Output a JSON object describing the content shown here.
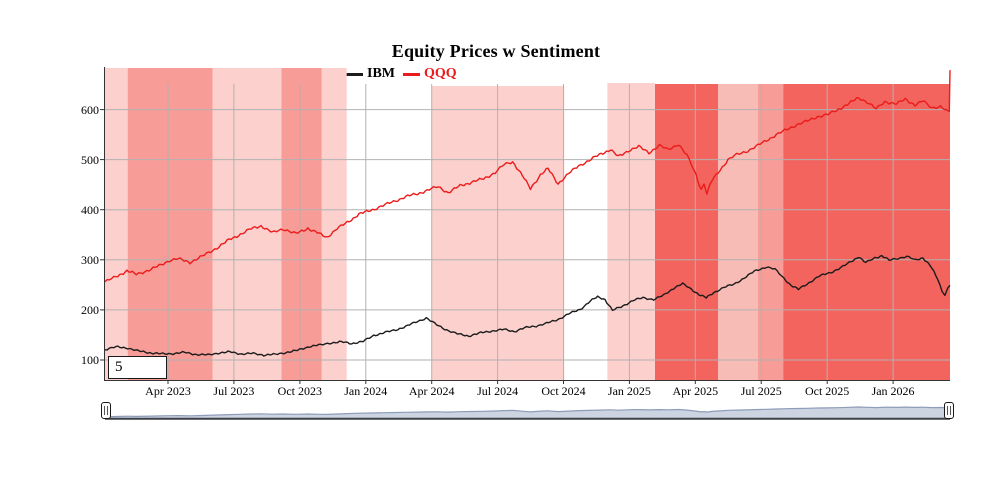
{
  "controls": {
    "window_value": "5"
  },
  "navigator": {
    "area_fill": "#ccd4e1",
    "area_line": "#8e9cba",
    "baseline_color": "#3c4148"
  },
  "chart_data": {
    "type": "line",
    "title": "Equity Prices w Sentiment",
    "xlabel": "",
    "ylabel": "",
    "grid": true,
    "legend_position": "top-center",
    "x_ticks": [
      "Apr 2023",
      "Jul 2023",
      "Oct 2023",
      "Jan 2024",
      "Apr 2024",
      "Jul 2024",
      "Oct 2024",
      "Jan 2025",
      "Apr 2025",
      "Jul 2025",
      "Oct 2025",
      "Jan 2026"
    ],
    "y_ticks": [
      100,
      200,
      300,
      400,
      500,
      600
    ],
    "ylim": [
      60,
      685
    ],
    "x_range": [
      "2023-01-05",
      "2026-03-19"
    ],
    "band_colors": {
      "light": "#fbd0cd",
      "midlight": "#f8bcb6",
      "medium": "#f79c96",
      "dark": "#f2645d"
    },
    "sentiment_bands": [
      {
        "from": "2023-01-05",
        "to": "2023-02-06",
        "intensity": "light",
        "top": 68
      },
      {
        "from": "2023-02-06",
        "to": "2023-06-02",
        "intensity": "medium",
        "top": 68
      },
      {
        "from": "2023-06-02",
        "to": "2023-09-06",
        "intensity": "light",
        "top": 68
      },
      {
        "from": "2023-09-06",
        "to": "2023-11-01",
        "intensity": "medium",
        "top": 68
      },
      {
        "from": "2023-11-01",
        "to": "2023-12-05",
        "intensity": "light",
        "top": 68
      },
      {
        "from": "2024-04-01",
        "to": "2024-10-02",
        "intensity": "light",
        "top": 86
      },
      {
        "from": "2024-12-01",
        "to": "2025-02-06",
        "intensity": "light",
        "top": 83
      },
      {
        "from": "2025-02-06",
        "to": "2025-05-02",
        "intensity": "dark",
        "top": 84
      },
      {
        "from": "2025-05-02",
        "to": "2025-06-27",
        "intensity": "midlight",
        "top": 84
      },
      {
        "from": "2025-06-27",
        "to": "2025-08-01",
        "intensity": "medium",
        "top": 84
      },
      {
        "from": "2025-08-01",
        "to": "2026-03-19",
        "intensity": "dark",
        "top": 84
      }
    ],
    "series": [
      {
        "name": "IBM",
        "color": "#1c1c1c",
        "noise": 2.2,
        "points": [
          [
            "2023-01-05",
            121
          ],
          [
            "2023-01-20",
            126
          ],
          [
            "2023-02-06",
            124
          ],
          [
            "2023-02-20",
            118
          ],
          [
            "2023-03-08",
            114
          ],
          [
            "2023-03-24",
            112
          ],
          [
            "2023-04-08",
            113
          ],
          [
            "2023-04-24",
            115
          ],
          [
            "2023-05-10",
            111
          ],
          [
            "2023-05-26",
            110
          ],
          [
            "2023-06-10",
            114
          ],
          [
            "2023-06-26",
            116
          ],
          [
            "2023-07-12",
            112
          ],
          [
            "2023-07-28",
            113
          ],
          [
            "2023-08-12",
            110
          ],
          [
            "2023-08-28",
            111
          ],
          [
            "2023-09-12",
            115
          ],
          [
            "2023-09-28",
            119
          ],
          [
            "2023-10-14",
            127
          ],
          [
            "2023-10-30",
            130
          ],
          [
            "2023-11-12",
            134
          ],
          [
            "2023-11-28",
            136
          ],
          [
            "2023-12-12",
            133
          ],
          [
            "2023-12-28",
            137
          ],
          [
            "2024-01-12",
            149
          ],
          [
            "2024-01-28",
            155
          ],
          [
            "2024-02-12",
            160
          ],
          [
            "2024-02-26",
            167
          ],
          [
            "2024-03-12",
            177
          ],
          [
            "2024-03-24",
            184
          ],
          [
            "2024-04-08",
            170
          ],
          [
            "2024-04-22",
            160
          ],
          [
            "2024-05-06",
            152
          ],
          [
            "2024-05-22",
            148
          ],
          [
            "2024-06-08",
            154
          ],
          [
            "2024-06-24",
            158
          ],
          [
            "2024-07-10",
            161
          ],
          [
            "2024-07-24",
            157
          ],
          [
            "2024-08-08",
            164
          ],
          [
            "2024-08-24",
            168
          ],
          [
            "2024-09-08",
            173
          ],
          [
            "2024-09-24",
            181
          ],
          [
            "2024-10-08",
            192
          ],
          [
            "2024-10-24",
            201
          ],
          [
            "2024-11-08",
            218
          ],
          [
            "2024-11-18",
            226
          ],
          [
            "2024-11-28",
            221
          ],
          [
            "2024-12-08",
            199
          ],
          [
            "2024-12-20",
            206
          ],
          [
            "2025-01-06",
            219
          ],
          [
            "2025-01-20",
            224
          ],
          [
            "2025-02-04",
            221
          ],
          [
            "2025-02-18",
            229
          ],
          [
            "2025-03-04",
            246
          ],
          [
            "2025-03-14",
            252
          ],
          [
            "2025-03-26",
            241
          ],
          [
            "2025-04-06",
            231
          ],
          [
            "2025-04-16",
            224
          ],
          [
            "2025-04-26",
            234
          ],
          [
            "2025-05-10",
            245
          ],
          [
            "2025-05-24",
            251
          ],
          [
            "2025-06-08",
            264
          ],
          [
            "2025-06-22",
            277
          ],
          [
            "2025-07-08",
            286
          ],
          [
            "2025-07-20",
            281
          ],
          [
            "2025-08-02",
            263
          ],
          [
            "2025-08-12",
            249
          ],
          [
            "2025-08-22",
            241
          ],
          [
            "2025-09-06",
            254
          ],
          [
            "2025-09-20",
            267
          ],
          [
            "2025-10-06",
            275
          ],
          [
            "2025-10-20",
            284
          ],
          [
            "2025-11-04",
            297
          ],
          [
            "2025-11-14",
            306
          ],
          [
            "2025-11-24",
            294
          ],
          [
            "2025-12-06",
            304
          ],
          [
            "2025-12-16",
            308
          ],
          [
            "2025-12-26",
            299
          ],
          [
            "2026-01-08",
            303
          ],
          [
            "2026-01-20",
            307
          ],
          [
            "2026-02-02",
            299
          ],
          [
            "2026-02-12",
            304
          ],
          [
            "2026-02-22",
            289
          ],
          [
            "2026-03-02",
            261
          ],
          [
            "2026-03-08",
            237
          ],
          [
            "2026-03-12",
            231
          ],
          [
            "2026-03-16",
            244
          ],
          [
            "2026-03-19",
            249
          ]
        ]
      },
      {
        "name": "QQQ",
        "color": "#ec1b1b",
        "noise": 3.2,
        "points": [
          [
            "2023-01-05",
            256
          ],
          [
            "2023-01-20",
            266
          ],
          [
            "2023-02-05",
            278
          ],
          [
            "2023-02-18",
            271
          ],
          [
            "2023-03-08",
            281
          ],
          [
            "2023-03-22",
            290
          ],
          [
            "2023-04-03",
            299
          ],
          [
            "2023-04-15",
            302
          ],
          [
            "2023-05-01",
            295
          ],
          [
            "2023-05-18",
            307
          ],
          [
            "2023-06-08",
            324
          ],
          [
            "2023-06-25",
            340
          ],
          [
            "2023-07-10",
            351
          ],
          [
            "2023-07-25",
            362
          ],
          [
            "2023-08-08",
            368
          ],
          [
            "2023-08-24",
            354
          ],
          [
            "2023-09-08",
            362
          ],
          [
            "2023-09-26",
            352
          ],
          [
            "2023-10-12",
            363
          ],
          [
            "2023-10-28",
            352
          ],
          [
            "2023-11-08",
            345
          ],
          [
            "2023-11-22",
            362
          ],
          [
            "2023-12-06",
            375
          ],
          [
            "2023-12-22",
            391
          ],
          [
            "2024-01-10",
            400
          ],
          [
            "2024-01-28",
            410
          ],
          [
            "2024-02-12",
            418
          ],
          [
            "2024-02-26",
            426
          ],
          [
            "2024-03-12",
            432
          ],
          [
            "2024-03-28",
            440
          ],
          [
            "2024-04-10",
            446
          ],
          [
            "2024-04-24",
            434
          ],
          [
            "2024-05-10",
            448
          ],
          [
            "2024-05-26",
            455
          ],
          [
            "2024-06-12",
            462
          ],
          [
            "2024-06-28",
            474
          ],
          [
            "2024-07-10",
            490
          ],
          [
            "2024-07-22",
            496
          ],
          [
            "2024-08-05",
            468
          ],
          [
            "2024-08-16",
            442
          ],
          [
            "2024-08-30",
            470
          ],
          [
            "2024-09-10",
            482
          ],
          [
            "2024-09-24",
            452
          ],
          [
            "2024-10-08",
            472
          ],
          [
            "2024-10-22",
            488
          ],
          [
            "2024-11-06",
            498
          ],
          [
            "2024-11-20",
            510
          ],
          [
            "2024-12-05",
            520
          ],
          [
            "2024-12-16",
            506
          ],
          [
            "2024-12-30",
            518
          ],
          [
            "2025-01-14",
            526
          ],
          [
            "2025-01-28",
            514
          ],
          [
            "2025-02-12",
            528
          ],
          [
            "2025-02-24",
            520
          ],
          [
            "2025-03-08",
            531
          ],
          [
            "2025-03-20",
            508
          ],
          [
            "2025-04-02",
            470
          ],
          [
            "2025-04-09",
            440
          ],
          [
            "2025-04-13",
            452
          ],
          [
            "2025-04-17",
            433
          ],
          [
            "2025-04-24",
            458
          ],
          [
            "2025-05-05",
            480
          ],
          [
            "2025-05-16",
            500
          ],
          [
            "2025-05-28",
            510
          ],
          [
            "2025-06-10",
            516
          ],
          [
            "2025-06-24",
            526
          ],
          [
            "2025-07-08",
            538
          ],
          [
            "2025-07-22",
            550
          ],
          [
            "2025-08-06",
            560
          ],
          [
            "2025-08-20",
            570
          ],
          [
            "2025-09-04",
            577
          ],
          [
            "2025-09-18",
            586
          ],
          [
            "2025-10-02",
            590
          ],
          [
            "2025-10-16",
            600
          ],
          [
            "2025-11-01",
            612
          ],
          [
            "2025-11-14",
            624
          ],
          [
            "2025-11-26",
            615
          ],
          [
            "2025-12-08",
            601
          ],
          [
            "2025-12-20",
            616
          ],
          [
            "2026-01-06",
            611
          ],
          [
            "2026-01-18",
            621
          ],
          [
            "2026-02-01",
            609
          ],
          [
            "2026-02-12",
            617
          ],
          [
            "2026-02-24",
            604
          ],
          [
            "2026-03-06",
            606
          ],
          [
            "2026-03-14",
            597
          ],
          [
            "2026-03-18",
            595
          ],
          [
            "2026-03-19",
            680
          ]
        ]
      }
    ]
  }
}
